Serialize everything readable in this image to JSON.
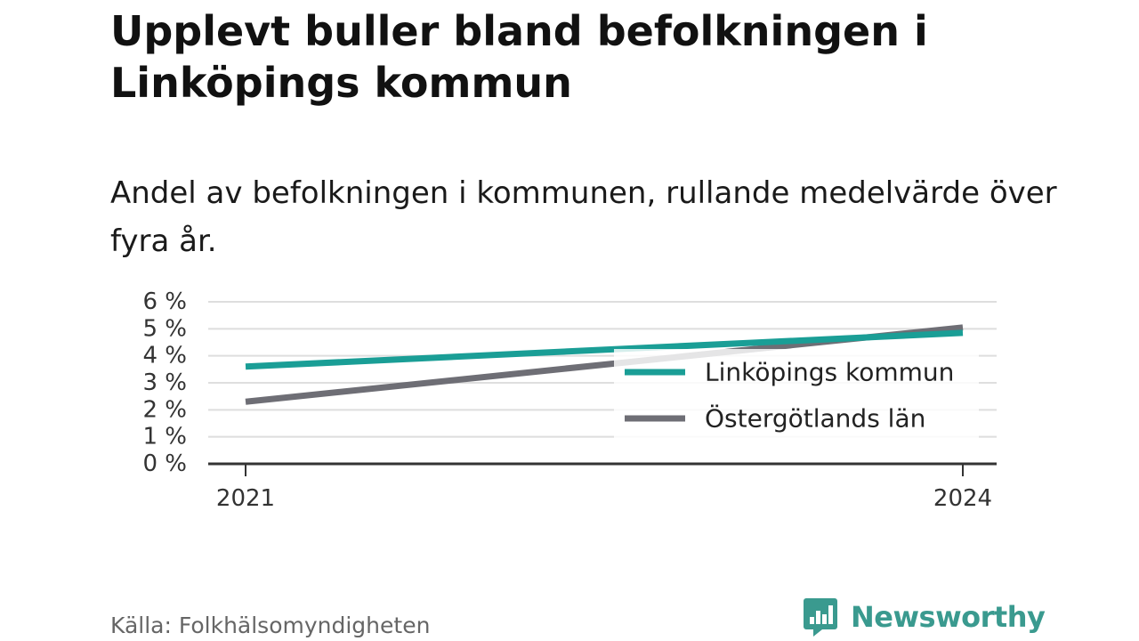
{
  "title": "Upplevt buller bland befolkningen i Linköpings kommun",
  "subtitle": "Andel av befolkningen i kommunen, rullande medelvärde över fyra år.",
  "source": "Källa: Folkhälsomyndigheten",
  "brand": {
    "name": "Newsworthy",
    "icon": "newsworthy-logo-icon",
    "color": "#3a9a8f"
  },
  "chart_data": {
    "type": "line",
    "title": "",
    "xlabel": "",
    "ylabel": "",
    "x": [
      2021,
      2024
    ],
    "x_tick_labels": [
      "2021",
      "2024"
    ],
    "y_ticks": [
      0,
      1,
      2,
      3,
      4,
      5,
      6
    ],
    "y_tick_labels": [
      "0 %",
      "1 %",
      "2 %",
      "3 %",
      "4 %",
      "5 %",
      "6 %"
    ],
    "ylim": [
      0,
      6
    ],
    "grid": true,
    "legend_position": "right",
    "series": [
      {
        "name": "Linköpings kommun",
        "values": [
          3.6,
          4.85
        ],
        "color": "#1a9e96"
      },
      {
        "name": "Östergötlands län",
        "values": [
          2.3,
          5.05
        ],
        "color": "#6e6e75"
      }
    ]
  }
}
